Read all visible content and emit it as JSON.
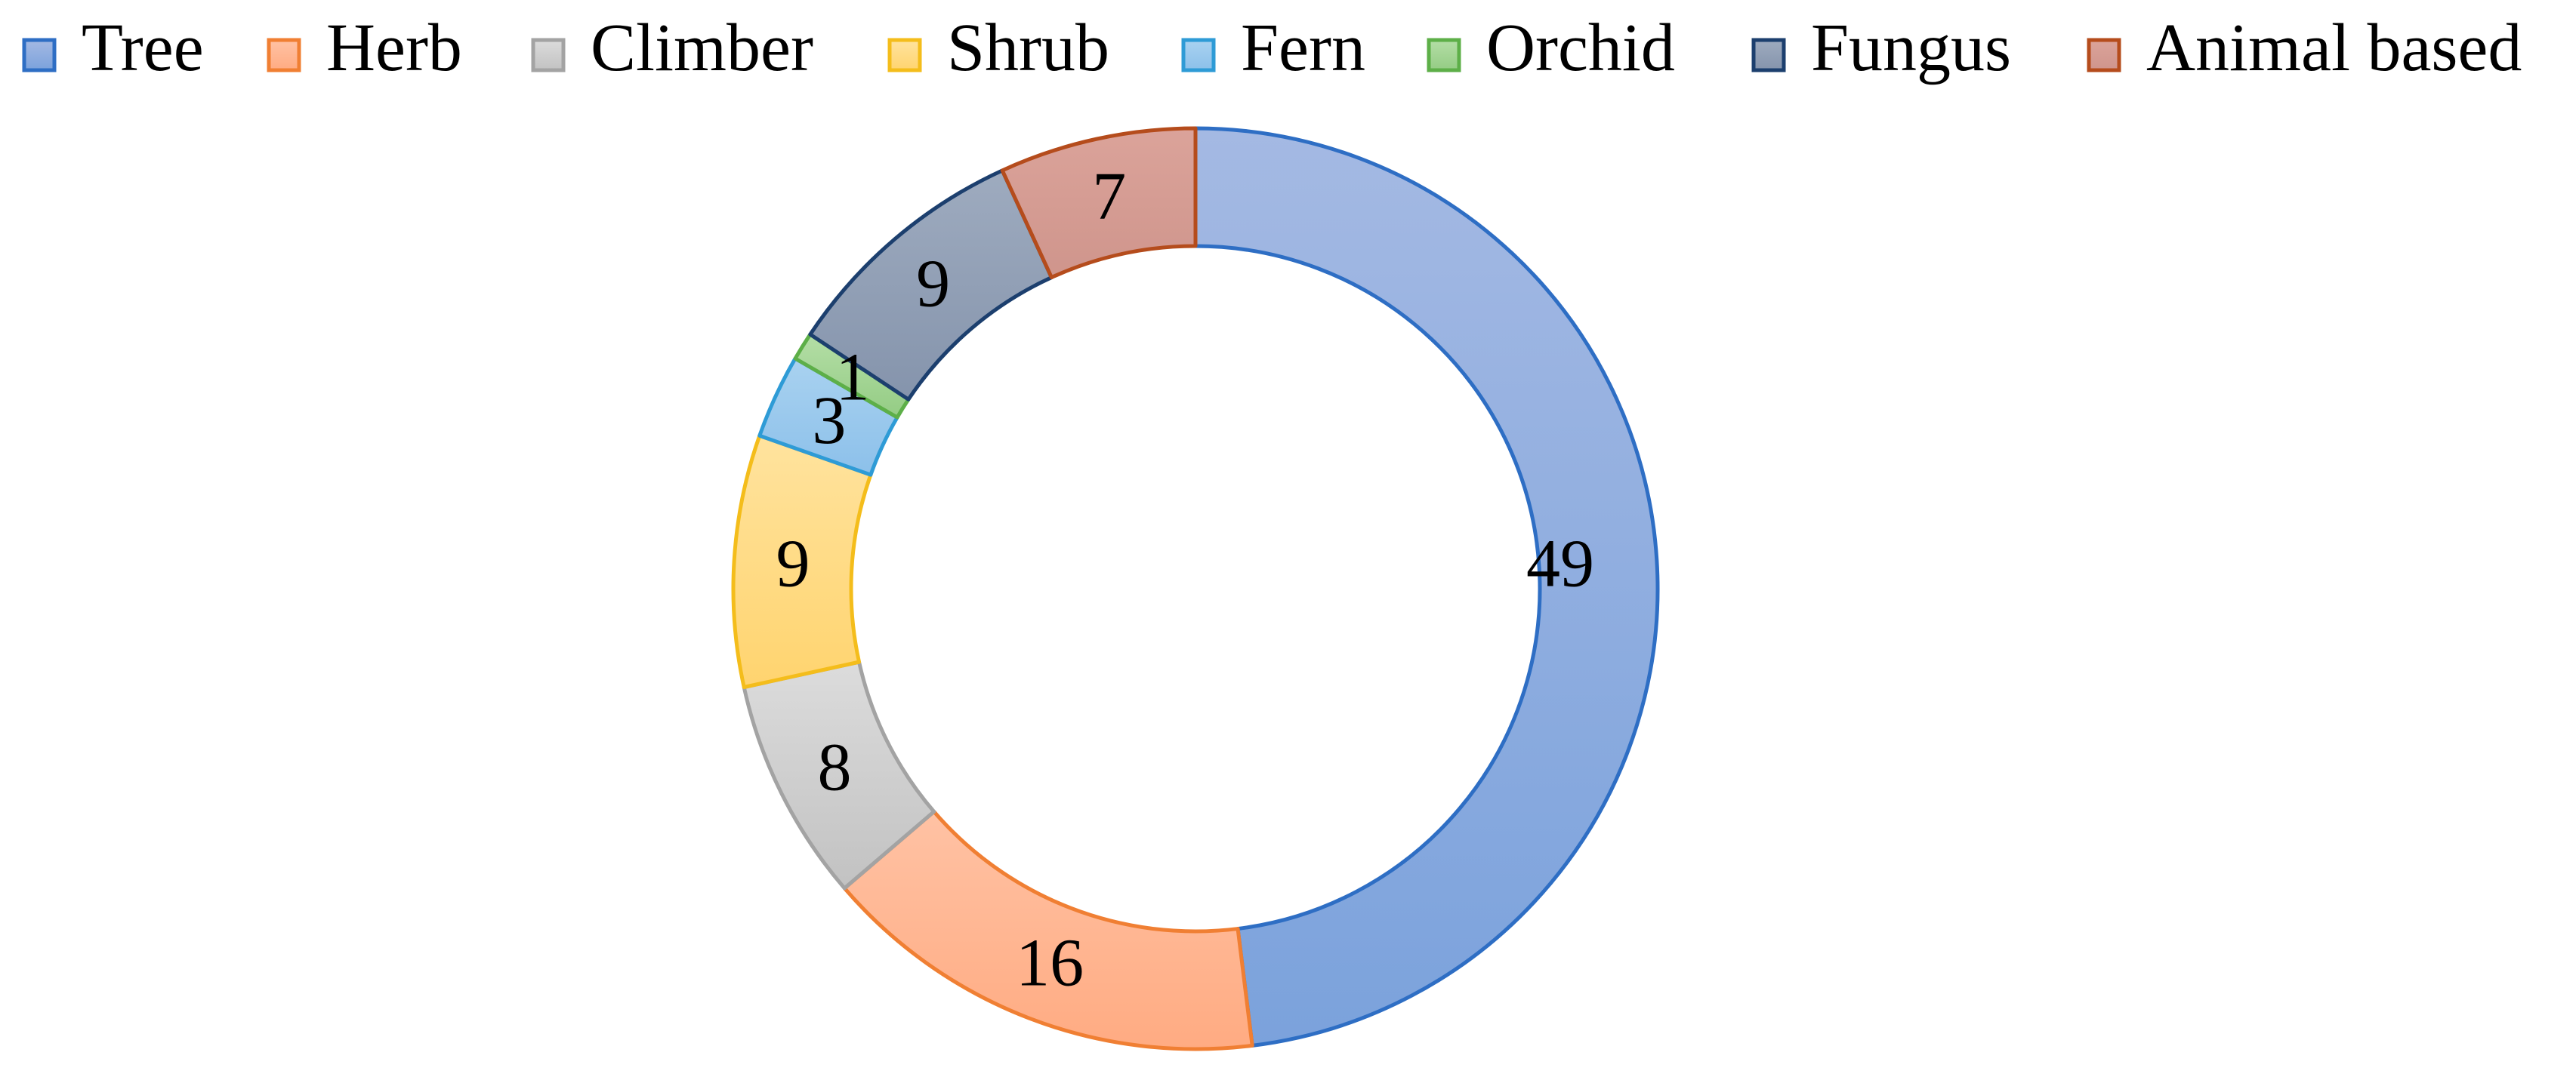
{
  "chart_data": {
    "type": "pie",
    "variant": "doughnut",
    "title": "",
    "categories": [
      "Tree",
      "Herb",
      "Climber",
      "Shrub",
      "Fern",
      "Orchid",
      "Fungus",
      "Animal based"
    ],
    "values": [
      49,
      16,
      8,
      9,
      3,
      1,
      9,
      7
    ],
    "data_labels": [
      "49",
      "16",
      "8",
      "9",
      "3",
      "1",
      "9",
      "7"
    ],
    "direction": "clockwise",
    "start": "top",
    "legend": {
      "position": "top",
      "items": [
        {
          "label": "Tree",
          "fill_top": "#a4b9e3",
          "fill_bottom": "#7ba2dc",
          "stroke": "#2e6ec4"
        },
        {
          "label": "Herb",
          "fill_top": "#ffc2a4",
          "fill_bottom": "#ffab82",
          "stroke": "#f07f33"
        },
        {
          "label": "Climber",
          "fill_top": "#dcdcdc",
          "fill_bottom": "#c2c2c2",
          "stroke": "#a3a3a3"
        },
        {
          "label": "Shrub",
          "fill_top": "#ffe39e",
          "fill_bottom": "#ffd46f",
          "stroke": "#f4bd1b"
        },
        {
          "label": "Fern",
          "fill_top": "#a9d2f0",
          "fill_bottom": "#8cc0ea",
          "stroke": "#2e9bd6"
        },
        {
          "label": "Orchid",
          "fill_top": "#b4dea6",
          "fill_bottom": "#94cc84",
          "stroke": "#5daf48"
        },
        {
          "label": "Fungus",
          "fill_top": "#9eabbf",
          "fill_bottom": "#8594ac",
          "stroke": "#1c3f6e"
        },
        {
          "label": "Animal based",
          "fill_top": "#dba39a",
          "fill_bottom": "#cf958c",
          "stroke": "#b54c1c"
        }
      ]
    }
  }
}
